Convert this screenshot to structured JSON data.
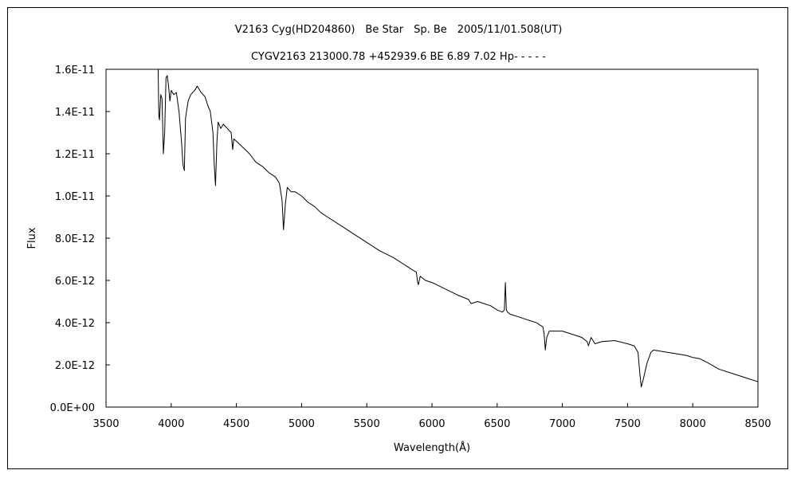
{
  "chart_data": {
    "type": "line",
    "title": "V2163 Cyg(HD204860)　Be Star　Sp. Be　2005/11/01.508(UT)",
    "subtitle": "CYGV2163 213000.78 +452939.6 BE 6.89 7.02 Hp- - - - -",
    "xlabel": "Wavelength(Å)",
    "ylabel": "Flux",
    "xlim": [
      3500,
      8500
    ],
    "ylim": [
      0,
      1.6e-11
    ],
    "xticks": [
      "3500",
      "4000",
      "4500",
      "5000",
      "5500",
      "6000",
      "6500",
      "7000",
      "7500",
      "8000",
      "8500"
    ],
    "yticks": [
      "0.0E+00",
      "2.0E-12",
      "4.0E-12",
      "6.0E-12",
      "8.0E-12",
      "1.0E-11",
      "1.2E-11",
      "1.4E-11",
      "1.6E-11"
    ],
    "grid": false,
    "series": [
      {
        "x": [
          3900,
          3905,
          3910,
          3920,
          3930,
          3940,
          3950,
          3960,
          3970,
          3980,
          3990,
          4000,
          4020,
          4040,
          4060,
          4080,
          4090,
          4101,
          4110,
          4130,
          4150,
          4180,
          4200,
          4230,
          4260,
          4280,
          4300,
          4320,
          4330,
          4340,
          4350,
          4360,
          4380,
          4400,
          4430,
          4460,
          4471,
          4480,
          4500,
          4550,
          4600,
          4650,
          4700,
          4750,
          4800,
          4830,
          4850,
          4861,
          4875,
          4890,
          4920,
          4950,
          5000,
          5050,
          5100,
          5150,
          5200,
          5300,
          5400,
          5500,
          5600,
          5700,
          5800,
          5850,
          5880,
          5890,
          5896,
          5910,
          5950,
          6000,
          6100,
          6200,
          6280,
          6300,
          6350,
          6400,
          6450,
          6500,
          6540,
          6555,
          6563,
          6570,
          6580,
          6600,
          6700,
          6800,
          6850,
          6860,
          6869,
          6880,
          6900,
          6950,
          7000,
          7100,
          7150,
          7190,
          7200,
          7220,
          7250,
          7300,
          7400,
          7500,
          7550,
          7580,
          7594,
          7605,
          7620,
          7650,
          7680,
          7700,
          7750,
          7800,
          7850,
          7900,
          7950,
          8000,
          8050,
          8100,
          8200,
          8300,
          8400,
          8500
        ],
        "y": [
          1.6e-11,
          1.38e-11,
          1.36e-11,
          1.48e-11,
          1.46e-11,
          1.2e-11,
          1.3e-11,
          1.56e-11,
          1.57e-11,
          1.52e-11,
          1.45e-11,
          1.5e-11,
          1.48e-11,
          1.49e-11,
          1.4e-11,
          1.25e-11,
          1.15e-11,
          1.12e-11,
          1.37e-11,
          1.45e-11,
          1.48e-11,
          1.5e-11,
          1.52e-11,
          1.49e-11,
          1.47e-11,
          1.43e-11,
          1.4e-11,
          1.3e-11,
          1.15e-11,
          1.05e-11,
          1.25e-11,
          1.35e-11,
          1.32e-11,
          1.34e-11,
          1.32e-11,
          1.3e-11,
          1.22e-11,
          1.27e-11,
          1.26e-11,
          1.23e-11,
          1.2e-11,
          1.16e-11,
          1.14e-11,
          1.11e-11,
          1.09e-11,
          1.06e-11,
          9.8e-12,
          8.4e-12,
          9.6e-12,
          1.04e-11,
          1.02e-11,
          1.02e-11,
          1e-11,
          9.7e-12,
          9.5e-12,
          9.2e-12,
          9e-12,
          8.6e-12,
          8.2e-12,
          7.8e-12,
          7.4e-12,
          7.1e-12,
          6.7e-12,
          6.5e-12,
          6.4e-12,
          5.9e-12,
          5.8e-12,
          6.2e-12,
          6e-12,
          5.9e-12,
          5.6e-12,
          5.3e-12,
          5.1e-12,
          4.9e-12,
          5e-12,
          4.9e-12,
          4.8e-12,
          4.6e-12,
          4.5e-12,
          4.6e-12,
          5.9e-12,
          4.6e-12,
          4.5e-12,
          4.4e-12,
          4.2e-12,
          4e-12,
          3.8e-12,
          3.5e-12,
          2.7e-12,
          3.3e-12,
          3.6e-12,
          3.6e-12,
          3.6e-12,
          3.4e-12,
          3.3e-12,
          3.1e-12,
          2.9e-12,
          3.3e-12,
          3e-12,
          3.1e-12,
          3.15e-12,
          3e-12,
          2.9e-12,
          2.6e-12,
          1.6e-12,
          9.5e-13,
          1.3e-12,
          2.1e-12,
          2.6e-12,
          2.7e-12,
          2.65e-12,
          2.6e-12,
          2.55e-12,
          2.5e-12,
          2.45e-12,
          2.35e-12,
          2.3e-12,
          2.15e-12,
          1.8e-12,
          1.6e-12,
          1.4e-12,
          1.2e-12
        ]
      }
    ]
  }
}
